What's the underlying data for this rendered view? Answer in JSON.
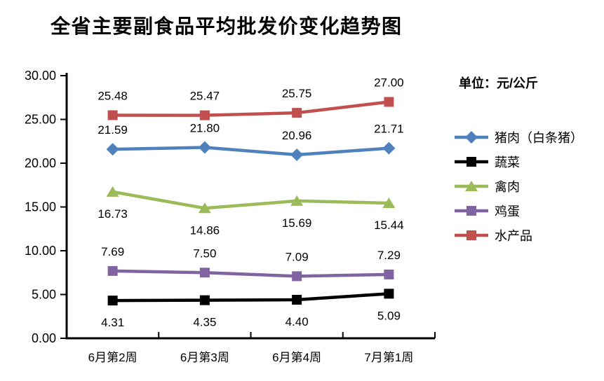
{
  "chart_data": {
    "type": "line",
    "title": "全省主要副食品平均批发价变化趋势图",
    "unit_label": "单位：元/公斤",
    "categories": [
      "6月第2周",
      "6月第3周",
      "6月第4周",
      "7月第1周"
    ],
    "series": [
      {
        "name": "猪肉（白条猪）",
        "values": [
          21.59,
          21.8,
          20.96,
          21.71
        ],
        "color": "#4F81BD",
        "marker": "diamond",
        "label_position": "above"
      },
      {
        "name": "蔬菜",
        "values": [
          4.31,
          4.35,
          4.4,
          5.09
        ],
        "color": "#000000",
        "marker": "square",
        "label_position": "below"
      },
      {
        "name": "禽肉",
        "values": [
          16.73,
          14.86,
          15.69,
          15.44
        ],
        "color": "#9BBB59",
        "marker": "triangle",
        "label_position": "below"
      },
      {
        "name": "鸡蛋",
        "values": [
          7.69,
          7.5,
          7.09,
          7.29
        ],
        "color": "#8064A2",
        "marker": "square",
        "label_position": "above"
      },
      {
        "name": "水产品",
        "values": [
          25.48,
          25.47,
          25.75,
          27.0
        ],
        "color": "#C0504D",
        "marker": "square",
        "label_position": "above"
      }
    ],
    "y_axis": {
      "min": 0,
      "max": 30,
      "step": 5,
      "tick_format": "2dp"
    },
    "x_axis": {
      "label": ""
    },
    "grid": false,
    "legend_position": "right",
    "axis_color": "#000000",
    "background": "#FFFFFF"
  }
}
